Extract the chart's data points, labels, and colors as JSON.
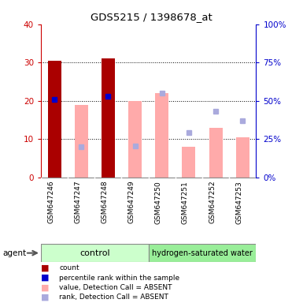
{
  "title": "GDS5215 / 1398678_at",
  "samples": [
    "GSM647246",
    "GSM647247",
    "GSM647248",
    "GSM647249",
    "GSM647250",
    "GSM647251",
    "GSM647252",
    "GSM647253"
  ],
  "ylim_left": [
    0,
    40
  ],
  "ylim_right": [
    0,
    100
  ],
  "yticks_left": [
    0,
    10,
    20,
    30,
    40
  ],
  "yticks_right": [
    0,
    25,
    50,
    75,
    100
  ],
  "count_values": [
    30.5,
    0,
    31.0,
    0,
    0,
    0,
    0,
    0
  ],
  "rank_values_pct": [
    51.0,
    0,
    53.0,
    0,
    0,
    0,
    0,
    0
  ],
  "value_absent": [
    0,
    19.0,
    0,
    20.0,
    22.0,
    8.0,
    13.0,
    10.5
  ],
  "rank_absent_pct": [
    0,
    20.0,
    0,
    20.5,
    55.0,
    29.0,
    43.0,
    37.0
  ],
  "color_count": "#aa0000",
  "color_rank": "#0000cc",
  "color_value_absent": "#ffaaaa",
  "color_rank_absent": "#aaaadd",
  "left_axis_color": "#cc0000",
  "right_axis_color": "#0000cc",
  "control_color": "#ccffcc",
  "h2water_color": "#99ee99",
  "bg_color": "#cccccc"
}
